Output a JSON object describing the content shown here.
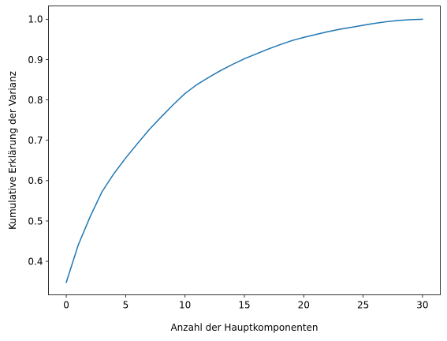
{
  "chart_data": {
    "type": "line",
    "title": "",
    "xlabel": "Anzahl der Hauptkomponenten",
    "ylabel": "Kumulative Erklärung der Varianz",
    "xlim": [
      -1.5,
      31.5
    ],
    "ylim": [
      0.317,
      1.033
    ],
    "grid": false,
    "legend": "none",
    "x_ticks": [
      0,
      5,
      10,
      15,
      20,
      25,
      30
    ],
    "y_ticks": [
      0.4,
      0.5,
      0.6,
      0.7,
      0.8,
      0.9,
      1.0
    ],
    "x_tick_labels": [
      "0",
      "5",
      "10",
      "15",
      "20",
      "25",
      "30"
    ],
    "y_tick_labels": [
      "0.4",
      "0.5",
      "0.6",
      "0.7",
      "0.8",
      "0.9",
      "1.0"
    ],
    "series": [
      {
        "color": "#1f77b4",
        "x": [
          0,
          1,
          2,
          3,
          4,
          5,
          6,
          7,
          8,
          9,
          10,
          11,
          12,
          13,
          14,
          15,
          16,
          17,
          18,
          19,
          20,
          21,
          22,
          23,
          24,
          25,
          26,
          27,
          28,
          29,
          30
        ],
        "y": [
          0.348,
          0.44,
          0.51,
          0.572,
          0.617,
          0.656,
          0.692,
          0.727,
          0.758,
          0.788,
          0.816,
          0.838,
          0.856,
          0.873,
          0.888,
          0.902,
          0.914,
          0.926,
          0.937,
          0.947,
          0.955,
          0.962,
          0.969,
          0.975,
          0.98,
          0.985,
          0.99,
          0.994,
          0.997,
          0.999,
          1.0
        ]
      }
    ]
  }
}
